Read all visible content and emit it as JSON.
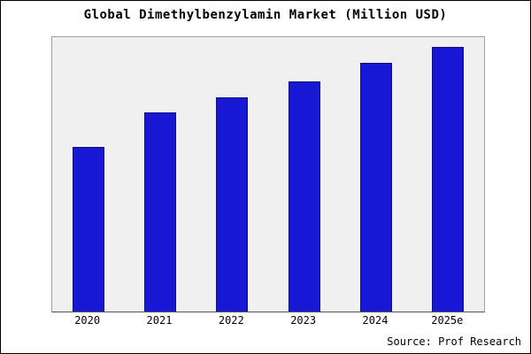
{
  "chart_data": {
    "type": "bar",
    "title": "Global Dimethylbenzylamin Market (Million USD)",
    "categories": [
      "2020",
      "2021",
      "2022",
      "2023",
      "2024",
      "2025e"
    ],
    "values": [
      62,
      75,
      81,
      87,
      94,
      100
    ],
    "xlabel": "",
    "ylabel": "",
    "ylim": [
      0,
      104
    ],
    "grid": false,
    "legend": "none",
    "bar_color": "#1717d4",
    "bar_edge_color": "#10107e",
    "plot_background": "#f0f0f0"
  },
  "source": {
    "label": "Source: Prof Research"
  }
}
